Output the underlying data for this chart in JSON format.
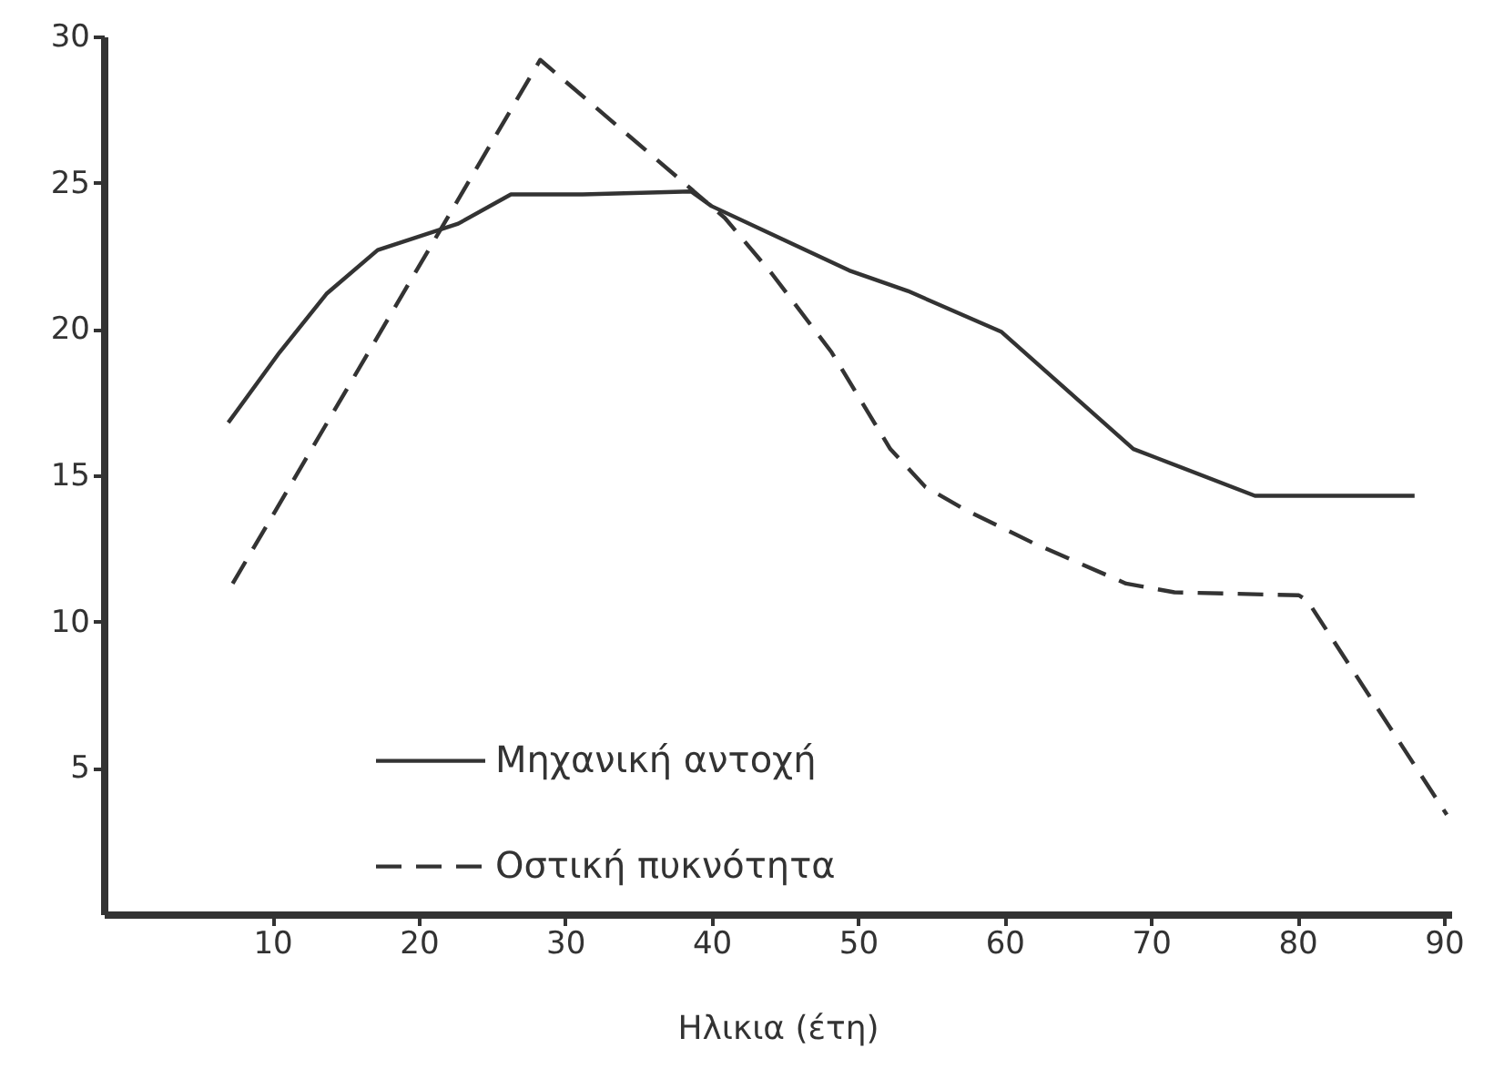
{
  "chart_data": {
    "type": "line",
    "xlabel": "Ηλικια (έτη)",
    "xlim": [
      -1.5,
      90.5
    ],
    "xticks": [
      10,
      20,
      30,
      40,
      50,
      60,
      70,
      80,
      90
    ],
    "ylim": [
      0,
      30
    ],
    "yticks": [
      5,
      10,
      15,
      20,
      25,
      30
    ],
    "grid": false,
    "legend": "bottom",
    "marker": "none",
    "series": [
      {
        "name": "Μηχανική αντοχή",
        "color": "#333333",
        "line_style": "solid",
        "x": [
          7.0,
          10.5,
          13.7,
          17.2,
          22.7,
          26.3,
          31.2,
          38.6,
          40,
          49.4,
          53.4,
          59.8,
          68.8,
          77.1,
          88.0
        ],
        "values": [
          16.8,
          19.2,
          21.2,
          22.7,
          23.6,
          24.6,
          24.6,
          24.7,
          24.2,
          22.0,
          21.3,
          19.9,
          15.9,
          14.3,
          14.3
        ]
      },
      {
        "name": "Οστική πυκνότητα",
        "color": "#333333",
        "line_style": "dashed",
        "x": [
          7.3,
          28.3,
          40.9,
          44.1,
          48.2,
          52.2,
          54.6,
          57.4,
          61.9,
          68.3,
          71.6,
          80.1,
          80.7,
          90.2
        ],
        "values": [
          11.3,
          29.2,
          23.8,
          21.9,
          19.2,
          15.9,
          14.6,
          13.8,
          12.7,
          11.3,
          11.0,
          10.9,
          10.7,
          3.4
        ]
      }
    ]
  }
}
